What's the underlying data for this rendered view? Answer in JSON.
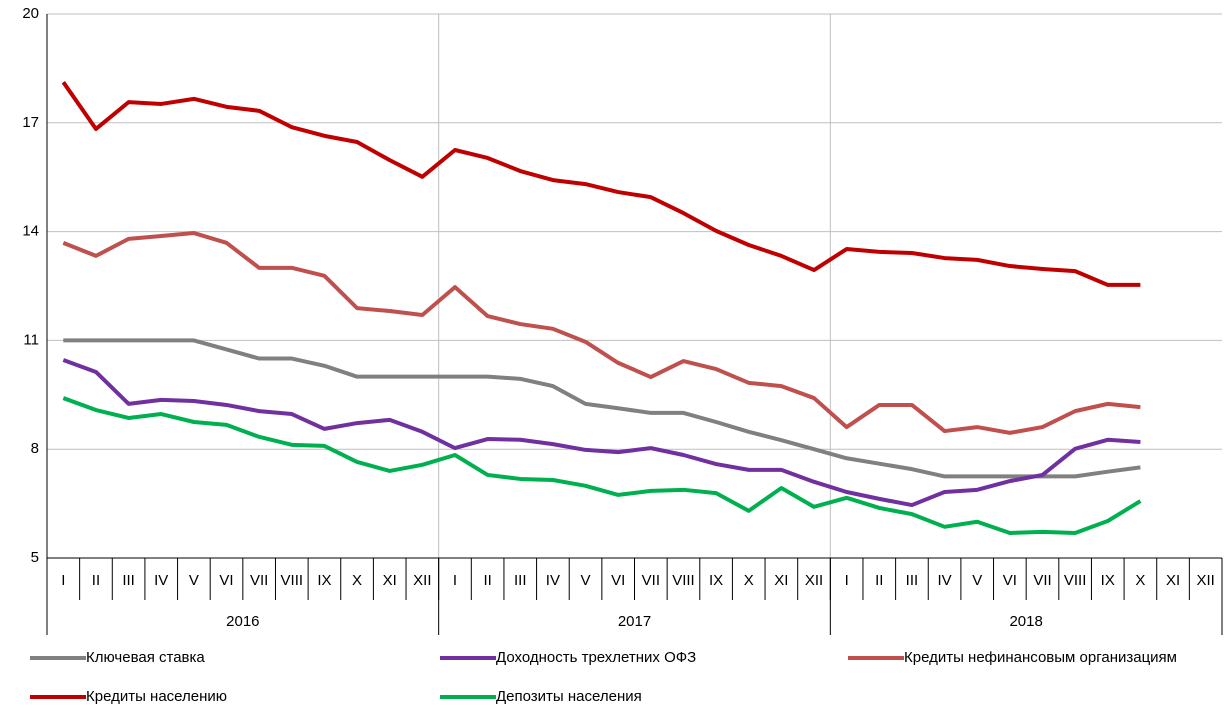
{
  "chart_data": {
    "type": "line",
    "categories": [
      "I",
      "II",
      "III",
      "IV",
      "V",
      "VI",
      "VII",
      "VIII",
      "IX",
      "X",
      "XI",
      "XII",
      "I",
      "II",
      "III",
      "IV",
      "V",
      "VI",
      "VII",
      "VIII",
      "IX",
      "X",
      "XI",
      "XII",
      "I",
      "II",
      "III",
      "IV",
      "V",
      "VI",
      "VII",
      "VIII",
      "IX",
      "X",
      "XI",
      "XII"
    ],
    "groups": [
      "2016",
      "2017",
      "2018"
    ],
    "ylim": [
      5,
      20
    ],
    "yticks": [
      5,
      8,
      11,
      14,
      17,
      20
    ],
    "grid": true,
    "series": [
      {
        "name": "Ключевая ставка",
        "color": "#808080",
        "values": [
          11,
          11,
          11,
          11,
          11,
          10.75,
          10.5,
          10.5,
          10.3,
          10,
          10,
          10,
          10,
          10,
          9.94,
          9.74,
          9.25,
          9.13,
          9,
          9,
          8.75,
          8.48,
          8.25,
          8,
          7.75,
          7.6,
          7.45,
          7.25,
          7.25,
          7.25,
          7.25,
          7.25,
          7.38,
          7.5,
          null,
          null
        ]
      },
      {
        "name": "Доходность трехлетних ОФЗ",
        "color": "#7030a0",
        "values": [
          10.46,
          10.13,
          9.25,
          9.36,
          9.33,
          9.22,
          9.05,
          8.97,
          8.56,
          8.72,
          8.81,
          8.48,
          8.03,
          8.28,
          8.26,
          8.14,
          7.98,
          7.92,
          8.03,
          7.84,
          7.59,
          7.43,
          7.43,
          7.1,
          6.82,
          6.63,
          6.46,
          6.82,
          6.88,
          7.12,
          7.29,
          8.01,
          8.26,
          8.2,
          null,
          null
        ]
      },
      {
        "name": "Кредиты нефинансовым организациям",
        "color": "#c0504d",
        "values": [
          13.69,
          13.33,
          13.8,
          13.88,
          13.96,
          13.69,
          13,
          13,
          12.78,
          11.89,
          11.81,
          11.7,
          12.47,
          11.67,
          11.45,
          11.32,
          10.96,
          10.38,
          9.99,
          10.43,
          10.21,
          9.83,
          9.74,
          9.41,
          8.61,
          9.22,
          9.22,
          8.5,
          8.61,
          8.45,
          8.61,
          9.05,
          9.25,
          9.16,
          null,
          null
        ]
      },
      {
        "name": "Кредиты населению",
        "color": "#c00000",
        "values": [
          18.12,
          16.83,
          17.57,
          17.52,
          17.66,
          17.44,
          17.33,
          16.88,
          16.64,
          16.47,
          15.97,
          15.51,
          16.25,
          16.03,
          15.67,
          15.42,
          15.31,
          15.09,
          14.95,
          14.51,
          14.02,
          13.63,
          13.33,
          12.94,
          13.52,
          13.44,
          13.41,
          13.27,
          13.22,
          13.05,
          12.97,
          12.91,
          12.53,
          12.53,
          null,
          null
        ]
      },
      {
        "name": "Депозиты населения",
        "color": "#00b050",
        "values": [
          9.41,
          9.08,
          8.86,
          8.97,
          8.75,
          8.67,
          8.34,
          8.12,
          8.09,
          7.65,
          7.4,
          7.57,
          7.84,
          7.29,
          7.18,
          7.15,
          6.99,
          6.74,
          6.85,
          6.88,
          6.79,
          6.3,
          6.93,
          6.41,
          6.66,
          6.38,
          6.21,
          5.86,
          6,
          5.69,
          5.72,
          5.69,
          6.02,
          6.57,
          null,
          null
        ]
      }
    ]
  }
}
